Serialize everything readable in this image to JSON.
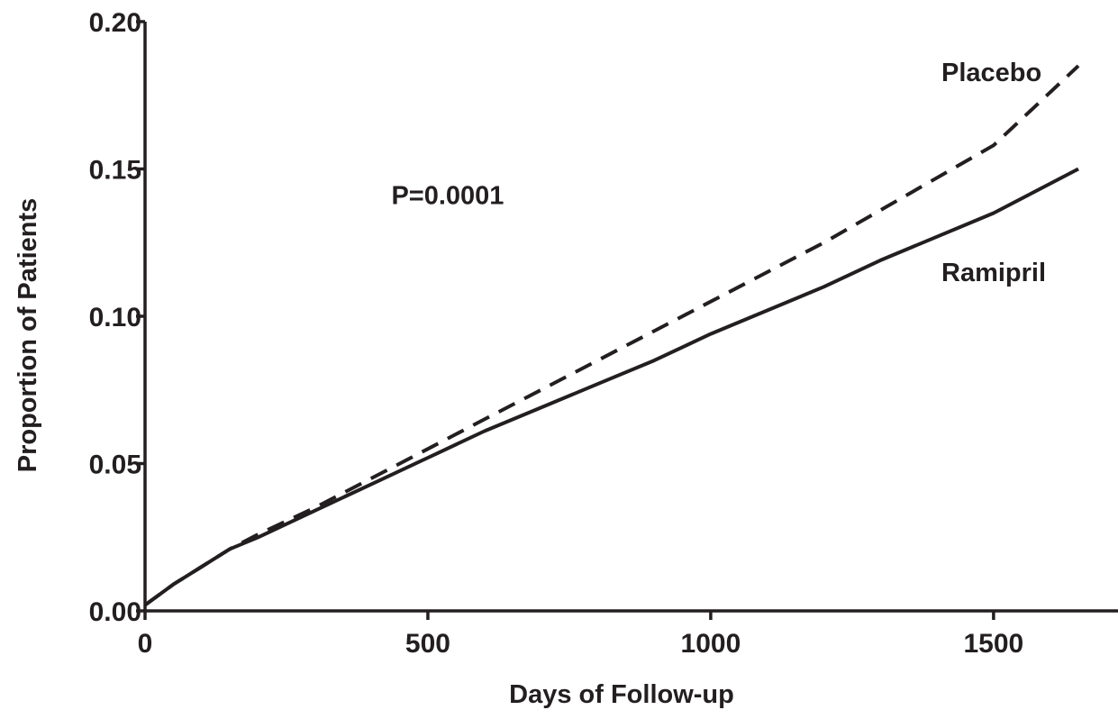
{
  "chart_data": {
    "type": "line",
    "xlabel": "Days of Follow-up",
    "ylabel": "Proportion of Patients",
    "xlim": [
      0,
      1720
    ],
    "ylim": [
      0,
      0.2
    ],
    "x_ticks": [
      0,
      500,
      1000,
      1500
    ],
    "x_tick_labels": [
      "0",
      "500",
      "1000",
      "1500"
    ],
    "y_ticks": [
      0,
      0.05,
      0.1,
      0.15,
      0.2
    ],
    "y_tick_labels": [
      "0.00",
      "0.05",
      "0.10",
      "0.15",
      "0.20"
    ],
    "grid": false,
    "series": [
      {
        "name": "Placebo",
        "style": "dashed",
        "color": "#231f20",
        "x": [
          0,
          50,
          100,
          150,
          200,
          300,
          400,
          500,
          600,
          700,
          800,
          900,
          1000,
          1100,
          1200,
          1300,
          1400,
          1500,
          1650
        ],
        "y": [
          0.002,
          0.009,
          0.015,
          0.021,
          0.026,
          0.035,
          0.045,
          0.055,
          0.065,
          0.075,
          0.085,
          0.095,
          0.105,
          0.115,
          0.125,
          0.136,
          0.147,
          0.158,
          0.185
        ]
      },
      {
        "name": "Ramipril",
        "style": "solid",
        "color": "#231f20",
        "x": [
          0,
          50,
          100,
          150,
          200,
          300,
          400,
          500,
          600,
          700,
          800,
          900,
          1000,
          1100,
          1200,
          1300,
          1400,
          1500,
          1650
        ],
        "y": [
          0.002,
          0.009,
          0.015,
          0.021,
          0.025,
          0.034,
          0.043,
          0.052,
          0.061,
          0.069,
          0.077,
          0.085,
          0.094,
          0.102,
          0.11,
          0.119,
          0.127,
          0.135,
          0.15
        ]
      }
    ],
    "annotations": [
      {
        "text": "P=0.0001",
        "x": 535,
        "y": 0.138
      }
    ]
  }
}
